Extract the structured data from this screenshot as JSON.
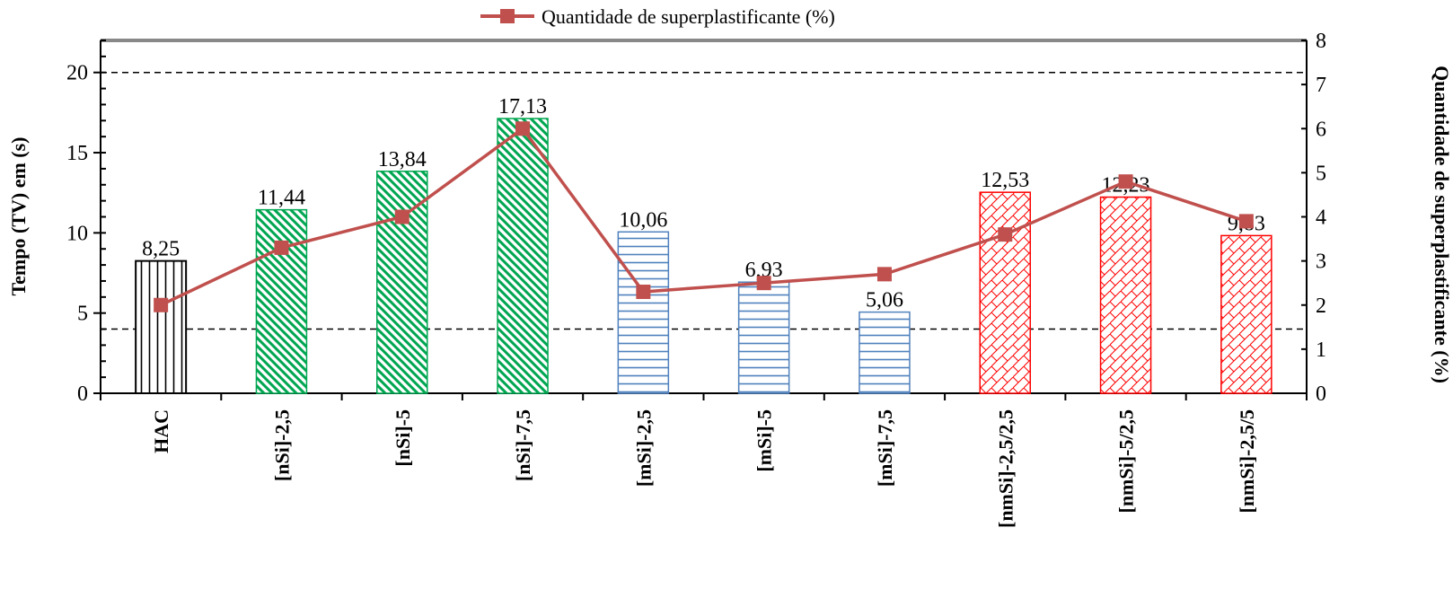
{
  "chart_data": {
    "type": "bar",
    "categories": [
      "HAC",
      "[nSi]-2,5",
      "[nSi]-5",
      "[nSi]-7,5",
      "[mSi]-2,5",
      "[mSi]-5",
      "[mSi]-7,5",
      "[nmSi]-2,5/2,5",
      "[nmSi]-5/2,5",
      "[nmSi]-2,5/5"
    ],
    "bar_series": {
      "values": [
        8.25,
        11.44,
        13.84,
        17.13,
        10.06,
        6.93,
        5.06,
        12.53,
        12.23,
        9.83
      ],
      "labels": [
        "8,25",
        "11,44",
        "13,84",
        "17,13",
        "10,06",
        "6,93",
        "5,06",
        "12,53",
        "12,23",
        "9,83"
      ],
      "groups": [
        "HAC",
        "nSi",
        "nSi",
        "nSi",
        "mSi",
        "mSi",
        "mSi",
        "nmSi",
        "nmSi",
        "nmSi"
      ],
      "group_colors": {
        "HAC": "#000000",
        "nSi": "#00A651",
        "mSi": "#4F81BD",
        "nmSi": "#FF0000"
      },
      "group_patterns": {
        "HAC": "vertical",
        "nSi": "diagonal",
        "mSi": "horizontal",
        "nmSi": "crosshatch"
      }
    },
    "line_series": {
      "name": "Quantidade de superplastificante (%)",
      "axis": "right",
      "values": [
        2.0,
        3.3,
        4.0,
        6.0,
        2.3,
        2.5,
        2.7,
        3.6,
        4.8,
        3.9
      ],
      "color": "#C0504D"
    },
    "reference_lines": [
      4,
      20
    ],
    "ylabel": "Tempo (TV) em (s)",
    "y2label": "Quantidade de superplastificante (%)",
    "ylim": [
      0,
      22
    ],
    "yticks": [
      0,
      5,
      10,
      15,
      20
    ],
    "y2lim": [
      0,
      8
    ],
    "y2ticks": [
      0,
      1,
      2,
      3,
      4,
      5,
      6,
      7,
      8
    ],
    "legend": "top-center",
    "grid": false
  }
}
